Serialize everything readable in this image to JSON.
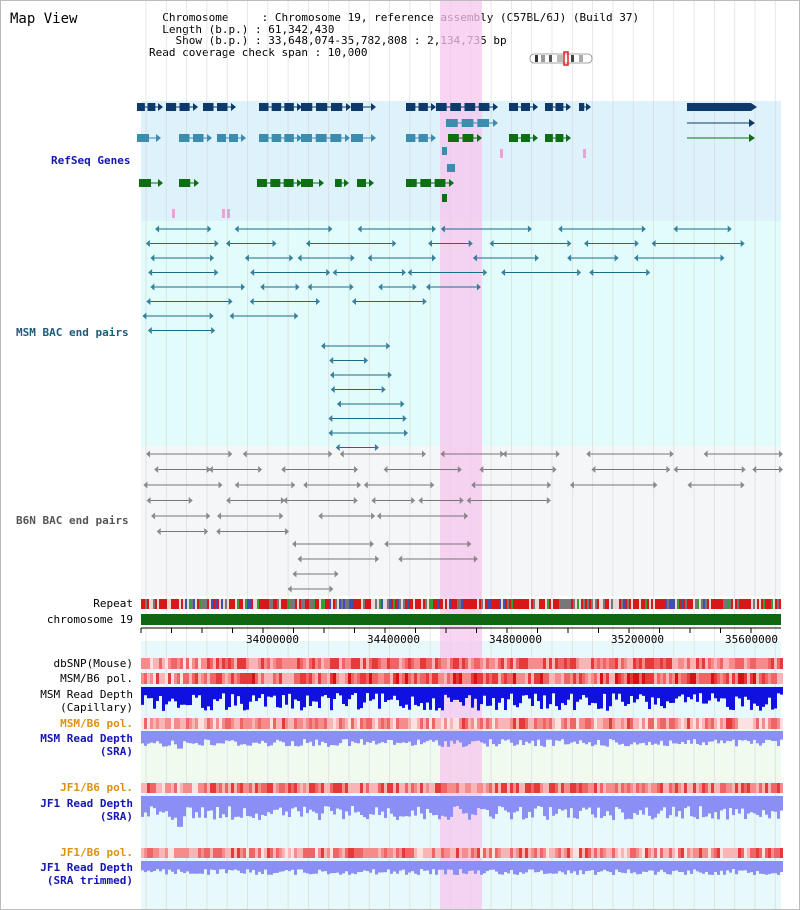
{
  "title": "Map View",
  "info": {
    "lines": [
      "  Chromosome     : Chromosome 19, reference assembly (C57BL/6J) (Build 37)",
      "  Length (b.p.) : 61,342,430",
      "    Show (b.p.) : 33,648,074-35,782,808 : 2,134,735 bp",
      "Read coverage check span : 10,000"
    ]
  },
  "tracks": {
    "refseq": "RefSeq Genes",
    "msm_bac": "MSM BAC end pairs",
    "b6n_bac": "B6N BAC end pairs",
    "repeat": "Repeat",
    "chromosome": "chromosome 19",
    "dbsnp": "dbSNP(Mouse)",
    "msm_b6_pol": "MSM/B6 pol.",
    "msm_read_depth_cap_1": "MSM Read Depth",
    "msm_read_depth_cap_2": "(Capillary)",
    "msm_b6_pol_2": "MSM/B6 pol.",
    "msm_read_depth_sra_1": "MSM Read Depth",
    "msm_read_depth_sra_2": "(SRA)",
    "jf1_b6_pol": "JF1/B6 pol.",
    "jf1_read_depth_sra_1": "JF1 Read Depth",
    "jf1_read_depth_sra_2": "(SRA)",
    "jf1_b6_pol_2": "JF1/B6 pol.",
    "jf1_read_depth_trim_1": "JF1 Read Depth",
    "jf1_read_depth_trim_2": "(SRA trimmed)"
  },
  "axis": {
    "ticks": [
      "34000000",
      "34400000",
      "34800000",
      "35200000",
      "35600000"
    ]
  },
  "colors": {
    "highlight": "#f7c6ef",
    "refseq_bg": "#ddf2fa",
    "msm_bg": "#e2fbfb",
    "b6n_bg": "#f4f6f8",
    "gene_navy": "#0d3a6b",
    "gene_steel": "#3c8cb0",
    "gene_green": "#0e6e12",
    "msm_pair": "#1a6b8a",
    "b6n_pair": "#777777",
    "depth_blue": "#1010e0",
    "depth_light": "#8a8ef5",
    "label_blue": "#1515b5",
    "label_teal": "#1a5c7a",
    "label_orange": "#e09010",
    "chrom_green": "#116611"
  }
}
